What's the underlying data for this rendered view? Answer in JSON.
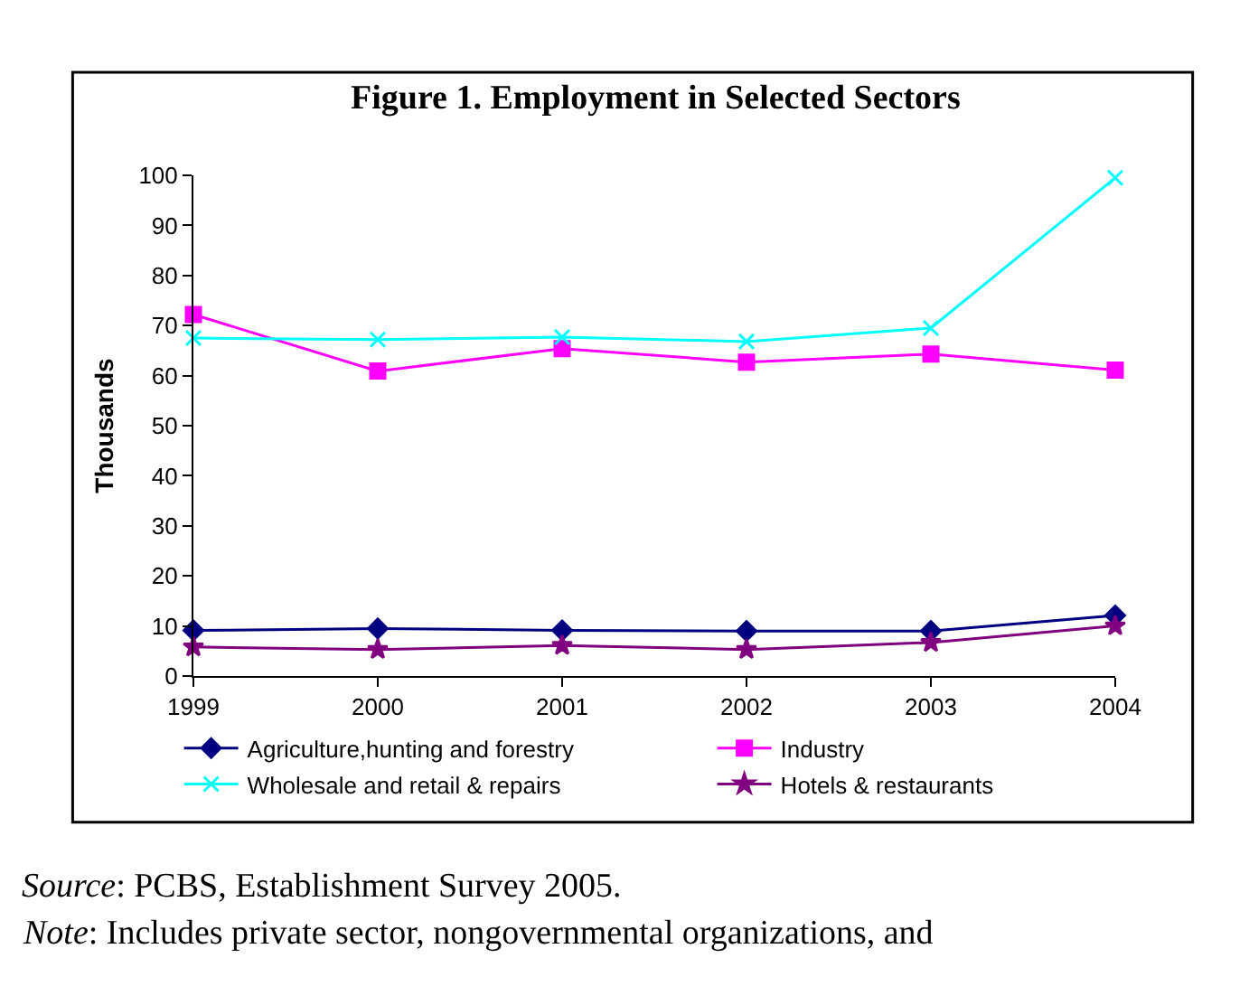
{
  "chart_data": {
    "type": "line",
    "title": "Figure 1. Employment in Selected Sectors",
    "ylabel": "Thousands",
    "x": [
      1999,
      2000,
      2001,
      2002,
      2003,
      2004
    ],
    "xlim": [
      1999,
      2004
    ],
    "xticks": [
      1999,
      2000,
      2001,
      2002,
      2003,
      2004
    ],
    "ylim": [
      0,
      100
    ],
    "yticks": [
      0,
      10,
      20,
      30,
      40,
      50,
      60,
      70,
      80,
      90,
      100
    ],
    "legend": "bottom",
    "line_style": "solid",
    "series": [
      {
        "name": "Agriculture,hunting and forestry",
        "color": "#000080",
        "marker": "diamond",
        "values": [
          9.1,
          9.5,
          9.1,
          9.0,
          9.0,
          12.1
        ]
      },
      {
        "name": "Industry",
        "color": "#ff00ff",
        "marker": "square",
        "values": [
          72.2,
          60.9,
          65.4,
          62.7,
          64.3,
          61.1
        ]
      },
      {
        "name": "Wholesale and retail & repairs",
        "color": "#00ffff",
        "marker": "cross",
        "values": [
          67.5,
          67.2,
          67.7,
          66.8,
          69.5,
          99.5
        ]
      },
      {
        "name": "Hotels & restaurants",
        "color": "#800080",
        "marker": "star",
        "values": [
          5.8,
          5.3,
          6.1,
          5.3,
          6.7,
          10.0
        ]
      }
    ],
    "annotations": [
      "Source: PCBS, Establishment Survey 2005.",
      "Note: Includes private sector, nongovernmental organizations, and"
    ]
  }
}
